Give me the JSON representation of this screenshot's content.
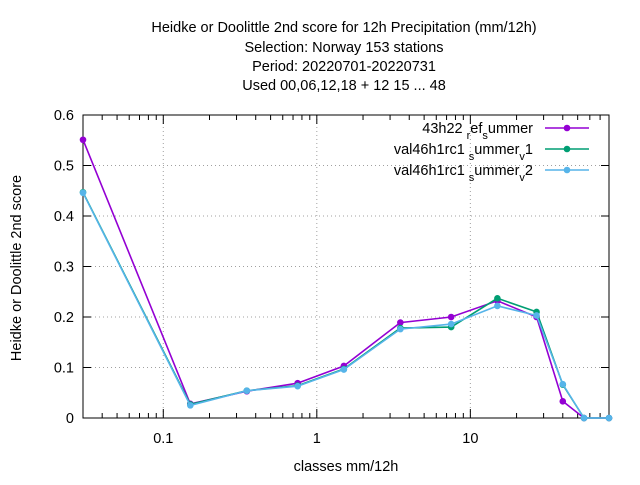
{
  "chart_data": {
    "type": "line",
    "title_lines": [
      "Heidke or Doolittle 2nd score  for 12h Precipitation (mm/12h)",
      "Selection: Norway    153 stations",
      "Period: 20220701-20220731",
      "Used  00,06,12,18 + 12 15 ... 48"
    ],
    "xlabel": "classes mm/12h",
    "ylabel": "Heidke or Doolittle 2nd score",
    "x_scale": "log",
    "xlim": [
      0.03,
      80
    ],
    "ylim": [
      0,
      0.6
    ],
    "x_ticks": [
      0.1,
      1,
      10
    ],
    "x_tick_labels": [
      "0.1",
      "1",
      "10"
    ],
    "y_ticks": [
      0,
      0.1,
      0.2,
      0.3,
      0.4,
      0.5,
      0.6
    ],
    "y_tick_labels": [
      "0",
      "0.1",
      "0.2",
      "0.3",
      "0.4",
      "0.5",
      "0.6"
    ],
    "grid": true,
    "legend_position": "top-right",
    "series": [
      {
        "legend_parts": [
          [
            "43h22 ",
            "base"
          ],
          [
            "r",
            "sub"
          ],
          [
            "ef",
            "base"
          ],
          [
            "s",
            "sub"
          ],
          [
            "ummer",
            "base"
          ]
        ],
        "color": "#9400d3",
        "x": [
          0.03,
          0.15,
          0.35,
          0.75,
          1.5,
          3.5,
          7.5,
          15,
          27,
          40,
          55,
          80
        ],
        "y": [
          0.551,
          0.028,
          0.053,
          0.069,
          0.103,
          0.189,
          0.2,
          0.232,
          0.2,
          0.033,
          0.0,
          0.0
        ]
      },
      {
        "legend_parts": [
          [
            "val46h1rc1 ",
            "base"
          ],
          [
            "s",
            "sub"
          ],
          [
            "ummer",
            "base"
          ],
          [
            "v",
            "sub"
          ],
          [
            "1",
            "base"
          ]
        ],
        "color": "#009e73",
        "x": [
          0.03,
          0.15,
          0.35,
          0.75,
          1.5,
          3.5,
          7.5,
          15,
          27,
          40,
          55,
          80
        ],
        "y": [
          0.447,
          0.027,
          0.054,
          0.064,
          0.097,
          0.178,
          0.18,
          0.237,
          0.21,
          0.066,
          0.0,
          0.0
        ]
      },
      {
        "legend_parts": [
          [
            "val46h1rc1 ",
            "base"
          ],
          [
            "s",
            "sub"
          ],
          [
            "ummer",
            "base"
          ],
          [
            "v",
            "sub"
          ],
          [
            "2",
            "base"
          ]
        ],
        "color": "#56b4e9",
        "x": [
          0.03,
          0.15,
          0.35,
          0.75,
          1.5,
          3.5,
          7.5,
          15,
          27,
          40,
          55,
          80
        ],
        "y": [
          0.446,
          0.025,
          0.054,
          0.063,
          0.096,
          0.176,
          0.186,
          0.222,
          0.203,
          0.067,
          0.0,
          0.0
        ]
      }
    ]
  }
}
